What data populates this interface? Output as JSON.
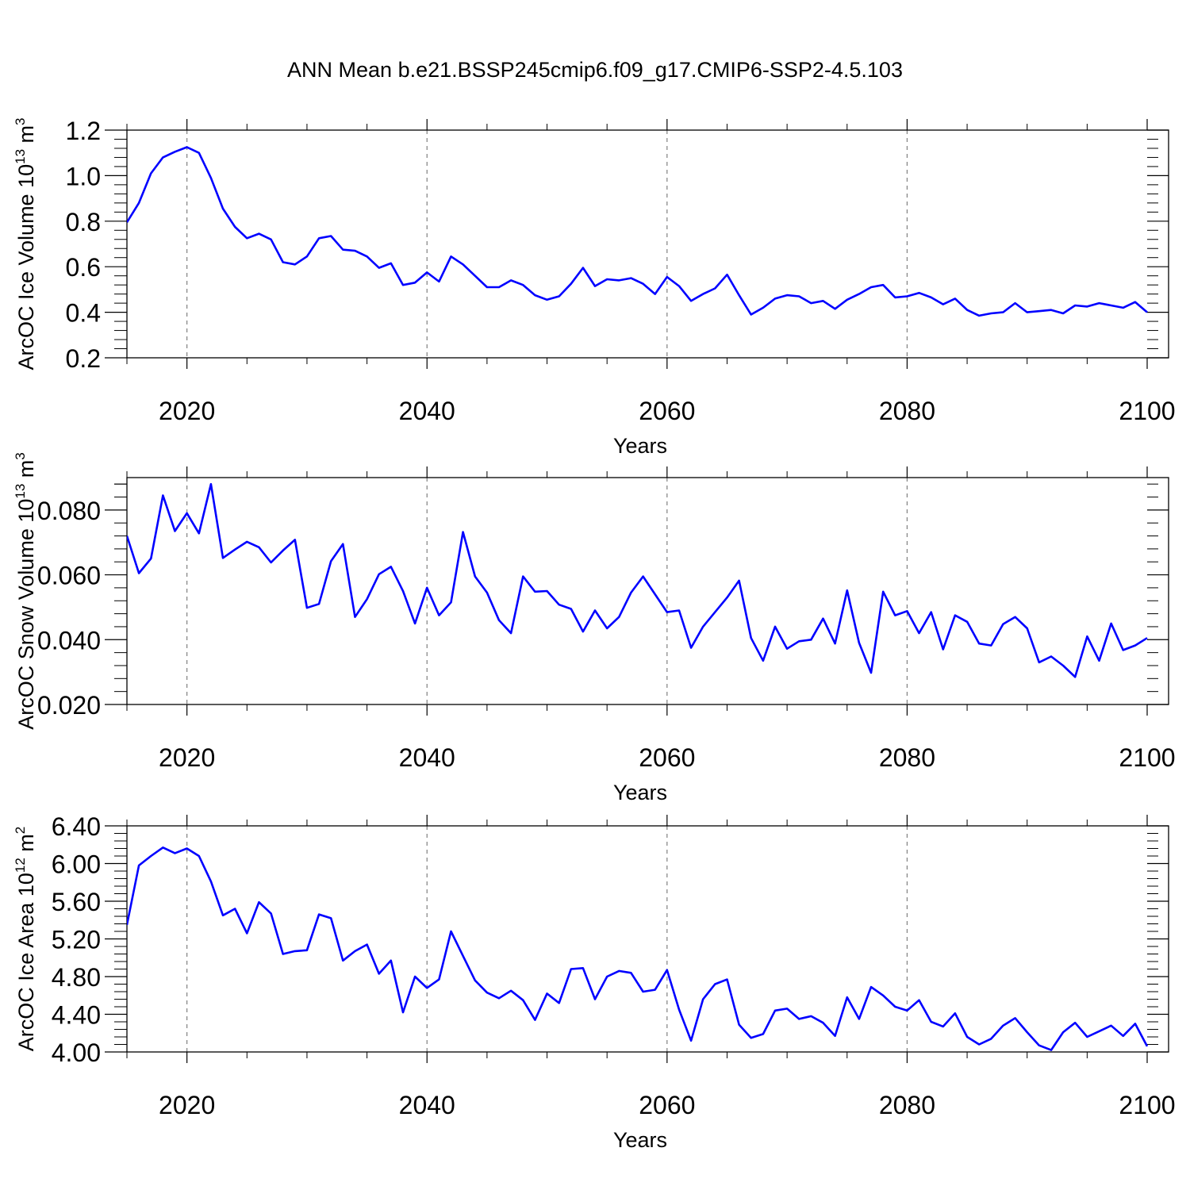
{
  "title": "ANN Mean b.e21.BSSP245cmip6.f09_g17.CMIP6-SSP2-4.5.103",
  "colors": {
    "line": "#0000ff",
    "axis": "#000000",
    "grid": "#808080"
  },
  "chart_data": [
    {
      "type": "line",
      "xlabel": "Years",
      "ylabel": {
        "text": "ArcOC Ice Volume 10",
        "exp": "13",
        "unit": " m",
        "unit_exp": "3"
      },
      "xlim": [
        2015,
        2100
      ],
      "ylim": [
        0.2,
        1.2
      ],
      "xticks": [
        2020,
        2040,
        2060,
        2080,
        2100
      ],
      "xtick_labels": [
        "2020",
        "2040",
        "2060",
        "2080",
        "2100"
      ],
      "yticks": [
        0.2,
        0.4,
        0.6,
        0.8,
        1.0,
        1.2
      ],
      "ytick_labels": [
        "0.2",
        "0.4",
        "0.6",
        "0.8",
        "1.0",
        "1.2"
      ],
      "grid": "vertical dashed at major x ticks",
      "x_start": 2015,
      "values": [
        0.795,
        0.88,
        1.01,
        1.08,
        1.105,
        1.125,
        1.1,
        0.99,
        0.855,
        0.775,
        0.725,
        0.745,
        0.72,
        0.62,
        0.61,
        0.645,
        0.725,
        0.735,
        0.675,
        0.67,
        0.645,
        0.595,
        0.615,
        0.52,
        0.53,
        0.575,
        0.535,
        0.645,
        0.61,
        0.56,
        0.51,
        0.51,
        0.54,
        0.52,
        0.475,
        0.455,
        0.47,
        0.525,
        0.595,
        0.515,
        0.545,
        0.54,
        0.55,
        0.525,
        0.48,
        0.555,
        0.515,
        0.45,
        0.48,
        0.505,
        0.565,
        0.475,
        0.39,
        0.42,
        0.46,
        0.475,
        0.47,
        0.44,
        0.45,
        0.415,
        0.455,
        0.48,
        0.51,
        0.52,
        0.465,
        0.47,
        0.485,
        0.465,
        0.435,
        0.46,
        0.41,
        0.385,
        0.395,
        0.4,
        0.44,
        0.4,
        0.405,
        0.41,
        0.395,
        0.43,
        0.425,
        0.44,
        0.43,
        0.42,
        0.445,
        0.4
      ]
    },
    {
      "type": "line",
      "xlabel": "Years",
      "ylabel": {
        "text": "ArcOC Snow Volume 10",
        "exp": "13",
        "unit": " m",
        "unit_exp": "3"
      },
      "xlim": [
        2015,
        2100
      ],
      "ylim": [
        0.02,
        0.09
      ],
      "xticks": [
        2020,
        2040,
        2060,
        2080,
        2100
      ],
      "xtick_labels": [
        "2020",
        "2040",
        "2060",
        "2080",
        "2100"
      ],
      "yticks": [
        0.02,
        0.04,
        0.06,
        0.08
      ],
      "ytick_labels": [
        "0.020",
        "0.040",
        "0.060",
        "0.080"
      ],
      "grid": "vertical dashed at major x ticks",
      "x_start": 2015,
      "values": [
        0.072,
        0.0605,
        0.065,
        0.0845,
        0.0735,
        0.079,
        0.0728,
        0.088,
        0.0652,
        0.0678,
        0.0702,
        0.0685,
        0.0638,
        0.0675,
        0.0708,
        0.0498,
        0.051,
        0.0642,
        0.0695,
        0.047,
        0.0525,
        0.0602,
        0.0625,
        0.055,
        0.045,
        0.056,
        0.0475,
        0.0515,
        0.0732,
        0.0595,
        0.0545,
        0.046,
        0.042,
        0.0595,
        0.0548,
        0.055,
        0.0508,
        0.0495,
        0.0425,
        0.049,
        0.0435,
        0.047,
        0.0545,
        0.0595,
        0.054,
        0.0485,
        0.049,
        0.0375,
        0.044,
        0.0485,
        0.053,
        0.0582,
        0.0405,
        0.0335,
        0.044,
        0.0372,
        0.0395,
        0.04,
        0.0465,
        0.0388,
        0.0552,
        0.039,
        0.0298,
        0.0548,
        0.0475,
        0.0488,
        0.042,
        0.0485,
        0.037,
        0.0475,
        0.0455,
        0.0388,
        0.0382,
        0.0448,
        0.047,
        0.0435,
        0.033,
        0.0348,
        0.032,
        0.0285,
        0.041,
        0.0335,
        0.045,
        0.0368,
        0.0382,
        0.0405
      ]
    },
    {
      "type": "line",
      "xlabel": "Years",
      "ylabel": {
        "text": "ArcOC Ice Area 10",
        "exp": "12",
        "unit": " m",
        "unit_exp": "2"
      },
      "xlim": [
        2015,
        2100
      ],
      "ylim": [
        4.0,
        6.4
      ],
      "xticks": [
        2020,
        2040,
        2060,
        2080,
        2100
      ],
      "xtick_labels": [
        "2020",
        "2040",
        "2060",
        "2080",
        "2100"
      ],
      "yticks": [
        4.0,
        4.4,
        4.8,
        5.2,
        5.6,
        6.0,
        6.4
      ],
      "ytick_labels": [
        "4.00",
        "4.40",
        "4.80",
        "5.20",
        "5.60",
        "6.00",
        "6.40"
      ],
      "grid": "vertical dashed at major x ticks",
      "x_start": 2015,
      "values": [
        5.35,
        5.98,
        6.08,
        6.17,
        6.11,
        6.16,
        6.08,
        5.81,
        5.45,
        5.52,
        5.26,
        5.59,
        5.47,
        5.04,
        5.07,
        5.08,
        5.46,
        5.42,
        4.97,
        5.07,
        5.14,
        4.83,
        4.97,
        4.42,
        4.8,
        4.68,
        4.77,
        5.28,
        5.02,
        4.76,
        4.63,
        4.57,
        4.65,
        4.55,
        4.34,
        4.62,
        4.52,
        4.88,
        4.89,
        4.56,
        4.8,
        4.86,
        4.84,
        4.64,
        4.66,
        4.87,
        4.45,
        4.12,
        4.56,
        4.72,
        4.77,
        4.29,
        4.15,
        4.19,
        4.44,
        4.46,
        4.35,
        4.38,
        4.31,
        4.17,
        4.58,
        4.35,
        4.69,
        4.6,
        4.48,
        4.44,
        4.55,
        4.32,
        4.27,
        4.41,
        4.16,
        4.08,
        4.14,
        4.28,
        4.36,
        4.21,
        4.07,
        4.02,
        4.21,
        4.31,
        4.16,
        4.22,
        4.28,
        4.17,
        4.3,
        4.06
      ]
    }
  ]
}
